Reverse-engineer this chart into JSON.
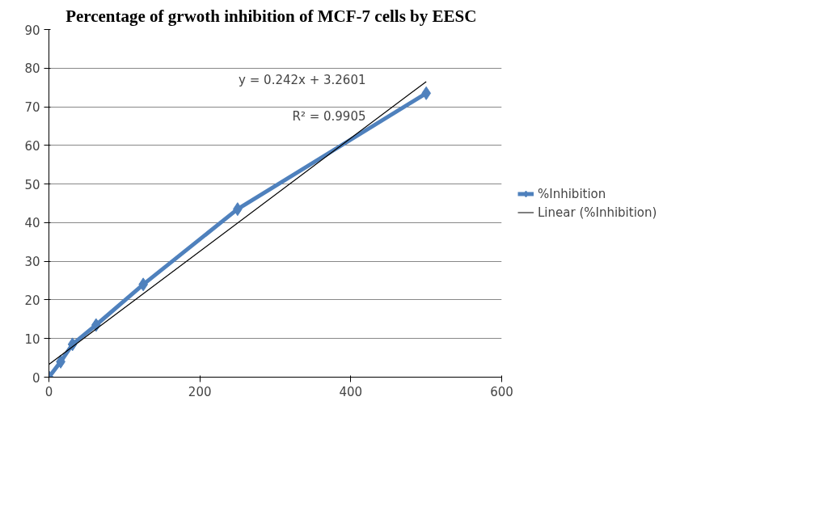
{
  "chart_data": {
    "type": "line",
    "title": "Percentage of grwoth  inhibition  of MCF-7 cells by EESC",
    "x": [
      0,
      15.6,
      31.25,
      62.5,
      125,
      250,
      500
    ],
    "series": [
      {
        "name": "%Inhibition",
        "color": "#4f81bd",
        "values": [
          0,
          4,
          8.5,
          13.5,
          24,
          43.5,
          73.5
        ],
        "marker": "diamond"
      },
      {
        "name": "Linear (%Inhibition)",
        "color": "#000000",
        "type": "line",
        "x": [
          0,
          500
        ],
        "values": [
          3.3,
          76.5
        ],
        "marker": "none"
      }
    ],
    "xlim": [
      0,
      600
    ],
    "xticks": [
      0,
      200,
      400,
      600
    ],
    "ylim": [
      0,
      90
    ],
    "yticks": [
      0,
      10,
      20,
      30,
      40,
      50,
      60,
      70,
      80,
      90
    ],
    "grid": "y",
    "legend": "right",
    "annotations": [
      "y = 0.242x + 3.2601",
      "R² = 0.9905"
    ]
  }
}
